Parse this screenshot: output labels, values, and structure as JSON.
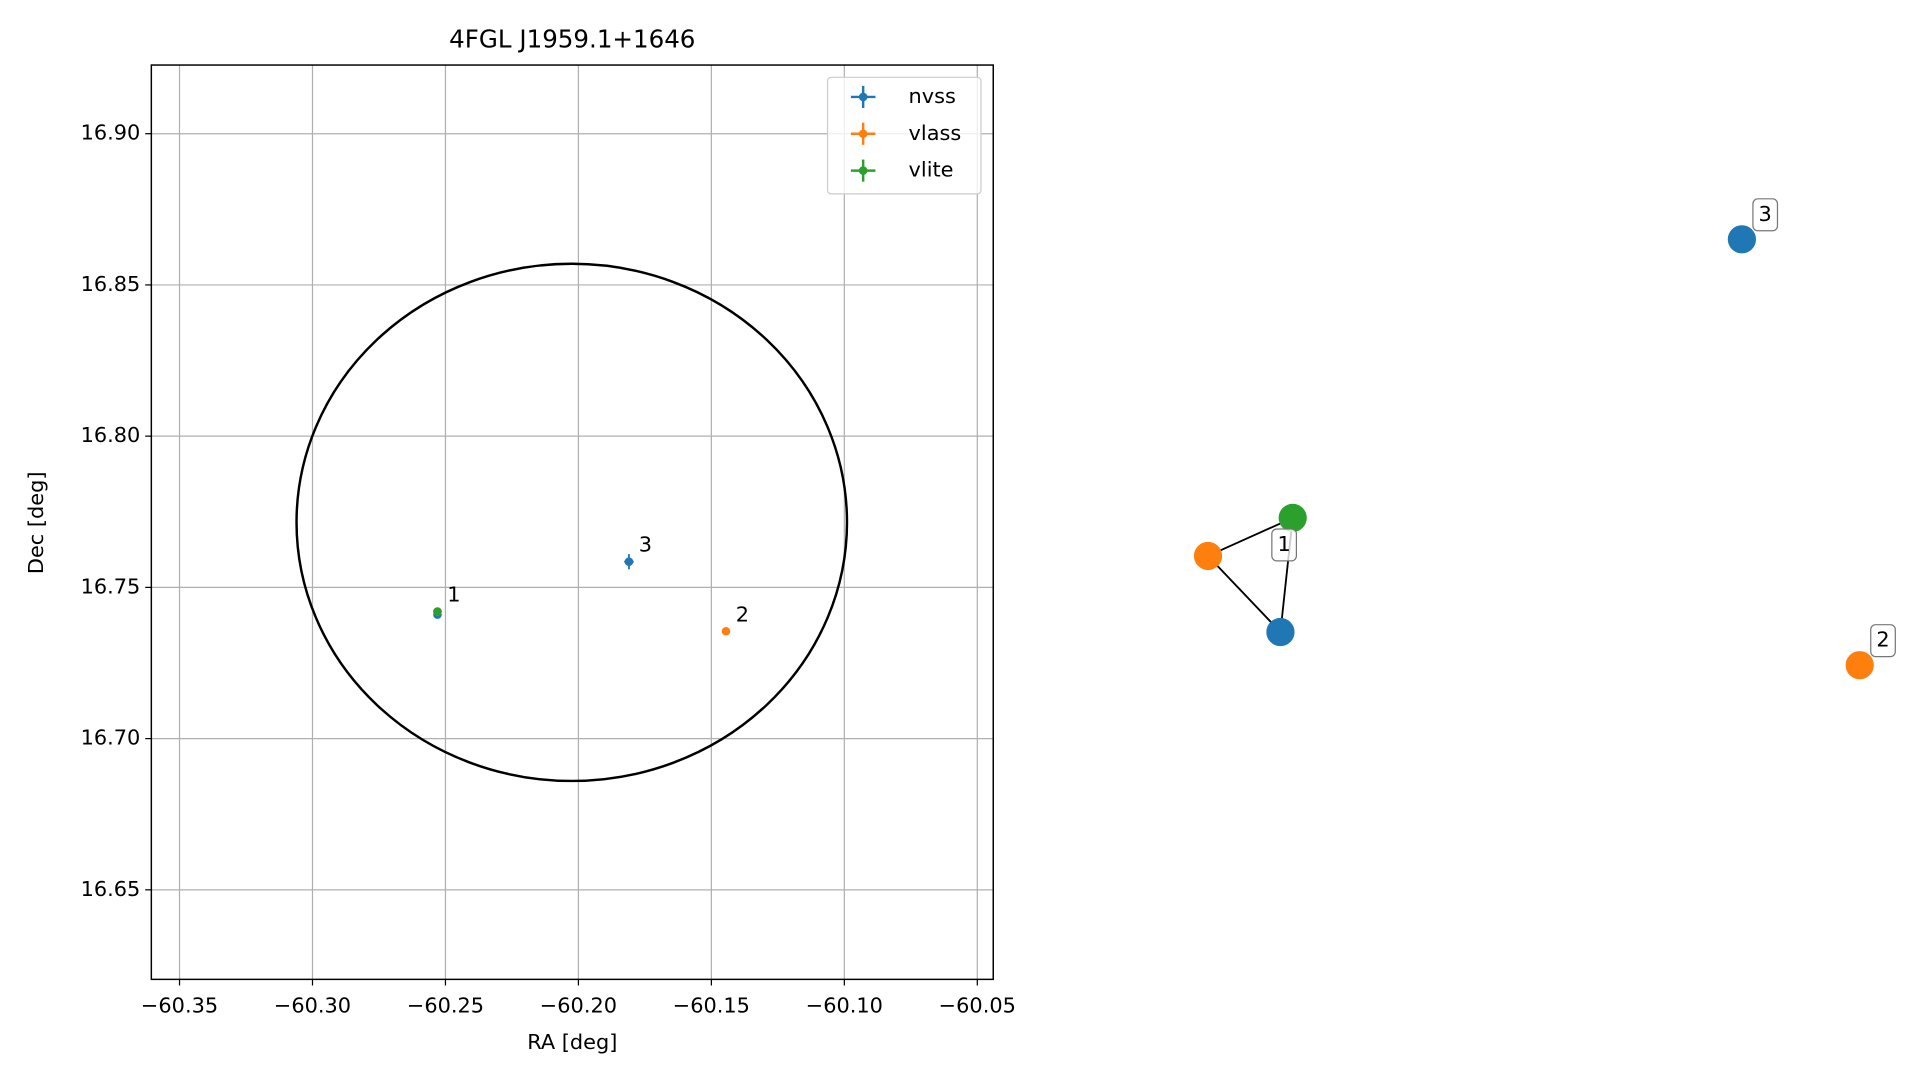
{
  "chart_data": [
    {
      "type": "scatter",
      "title": "4FGL J1959.1+1646",
      "x_label": "RA [deg]",
      "y_label": "Dec [deg]",
      "xlim": [
        -60.3606,
        -60.044
      ],
      "ylim": [
        16.6204,
        16.9227
      ],
      "xticks": [
        {
          "value": -60.35,
          "label": "−60.35"
        },
        {
          "value": -60.3,
          "label": "−60.30"
        },
        {
          "value": -60.25,
          "label": "−60.25"
        },
        {
          "value": -60.2,
          "label": "−60.20"
        },
        {
          "value": -60.15,
          "label": "−60.15"
        },
        {
          "value": -60.1,
          "label": "−60.10"
        },
        {
          "value": -60.05,
          "label": "−60.05"
        }
      ],
      "yticks": [
        16.65,
        {
          "value": 16.7,
          "label": "16.70"
        },
        16.75,
        {
          "value": 16.8,
          "label": "16.80"
        },
        16.85,
        {
          "value": 16.9,
          "label": "16.90"
        }
      ],
      "grid": true,
      "legend": "upper right",
      "series": [
        {
          "name": "nvss",
          "color": "#1f77b4",
          "x": [
            -60.253,
            -60.181
          ],
          "values": [
            16.741,
            16.7585
          ],
          "xerr": [
            0.0005,
            0.0018
          ],
          "yerr": [
            0.0008,
            0.0025
          ]
        },
        {
          "name": "vlass",
          "color": "#ff7f0e",
          "x": [
            -60.253,
            -60.1445
          ],
          "values": [
            16.742,
            16.7355
          ],
          "xerr": [
            0.0003,
            0.0003
          ],
          "yerr": [
            0.0003,
            0.0003
          ]
        },
        {
          "name": "vlite",
          "color": "#2ca02c",
          "x": [
            -60.253
          ],
          "values": [
            16.742
          ],
          "xerr": [
            0.0008
          ],
          "yerr": [
            0.0012
          ]
        }
      ],
      "region": {
        "color": "#000000",
        "center_x": -60.2025,
        "center_y": 16.7715,
        "radius_x": 0.1035,
        "radius_y": 0.0855
      },
      "annotations": [
        {
          "text": "1",
          "x": -60.253,
          "y": 16.742
        },
        {
          "text": "2",
          "x": -60.1445,
          "y": 16.7355
        },
        {
          "text": "3",
          "x": -60.181,
          "y": 16.7585
        }
      ]
    },
    {
      "type": "network",
      "groups": [
        {
          "label": "1",
          "nodes": [
            {
              "color": "#1f77b4"
            },
            {
              "color": "#ff7f0e"
            },
            {
              "color": "#2ca02c"
            }
          ]
        },
        {
          "label": "2",
          "nodes": [
            {
              "color": "#ff7f0e"
            }
          ]
        },
        {
          "label": "3",
          "nodes": [
            {
              "color": "#1f77b4"
            }
          ]
        }
      ]
    }
  ]
}
